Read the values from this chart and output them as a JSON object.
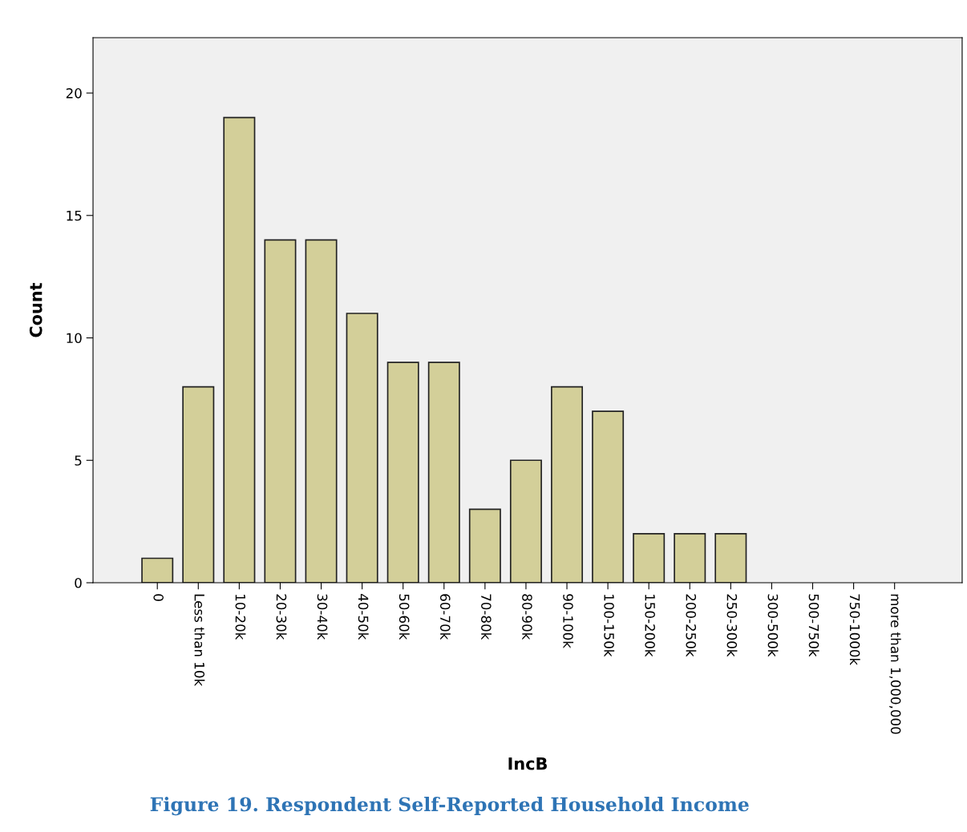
{
  "chart_data": {
    "type": "bar",
    "xlabel": "IncB",
    "ylabel": "Count",
    "categories": [
      "0",
      "Less than 10k",
      "10-20k",
      "20-30k",
      "30-40k",
      "40-50k",
      "50-60k",
      "60-70k",
      "70-80k",
      "80-90k",
      "90-100k",
      "100-150k",
      "150-200k",
      "200-250k",
      "250-300k",
      "300-500k",
      "500-750k",
      "750-1000k",
      "more than 1,000,000"
    ],
    "values": [
      1,
      8,
      19,
      14,
      14,
      11,
      9,
      9,
      3,
      5,
      8,
      7,
      2,
      2,
      2,
      0,
      0,
      0,
      0
    ],
    "color": "#d3cf99",
    "ylim": [
      0,
      22.26
    ],
    "yticks": [
      0,
      5,
      10,
      15,
      20
    ],
    "grid": false,
    "legend": false,
    "annotations": [
      "Figure 19. Respondent Self-Reported Household Income"
    ]
  }
}
